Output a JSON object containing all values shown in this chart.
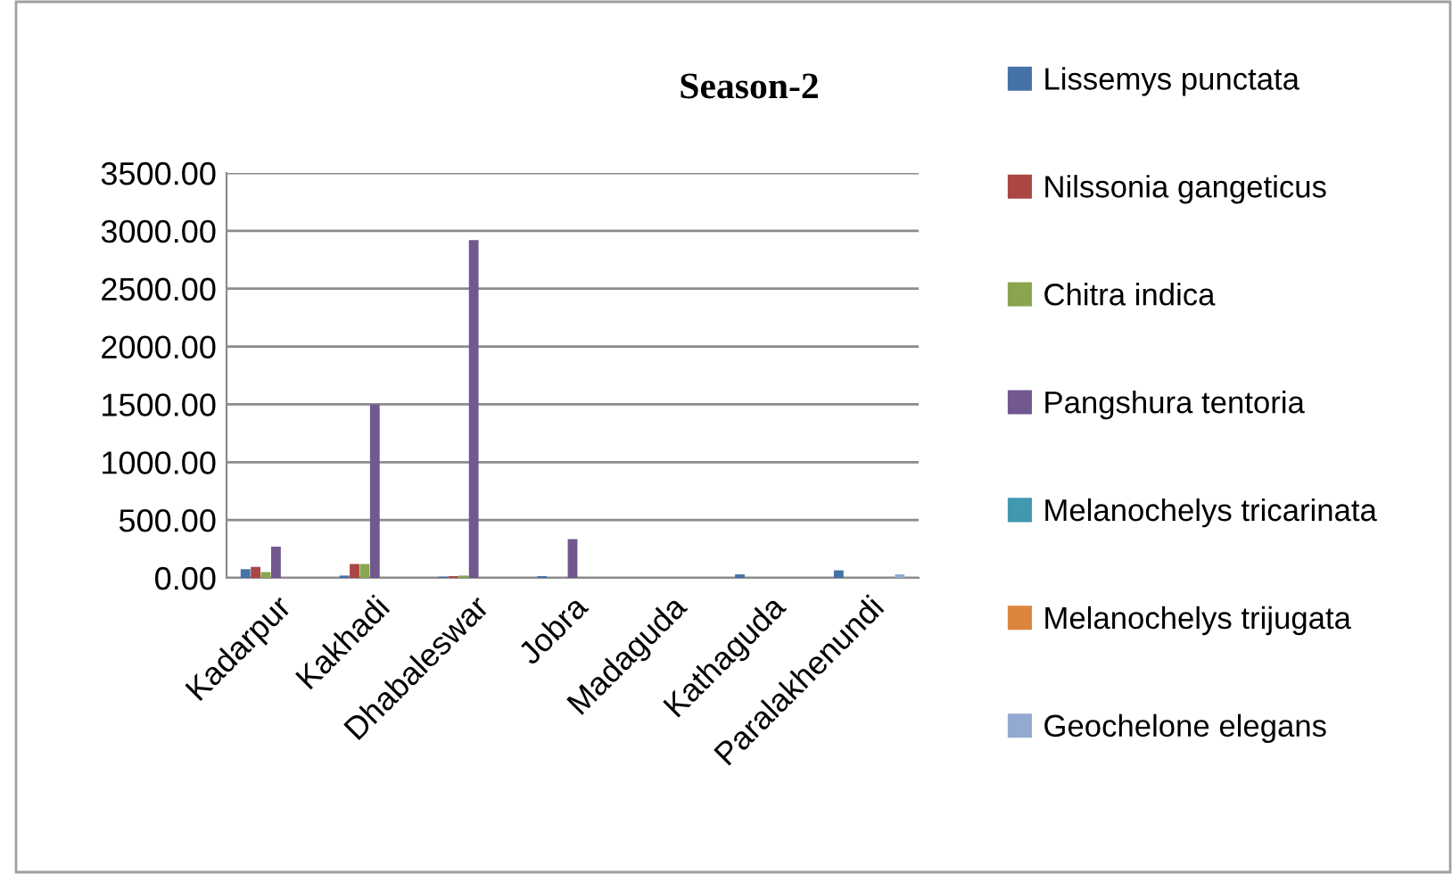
{
  "chart_data": {
    "type": "bar",
    "title": "Season-2",
    "categories": [
      "Kadarpur",
      "Kakhadi",
      "Dhabaleswar",
      "Jobra",
      "Madaguda",
      "Kathaguda",
      "Paralakhenundi"
    ],
    "series": [
      {
        "name": "Lissemys punctata",
        "color": "#4572a7",
        "values": [
          75,
          20,
          10,
          15,
          0,
          30,
          65
        ]
      },
      {
        "name": "Nilssonia gangeticus",
        "color": "#aa4643",
        "values": [
          95,
          120,
          15,
          0,
          0,
          0,
          0
        ]
      },
      {
        "name": "Chitra indica",
        "color": "#89a54e",
        "values": [
          50,
          120,
          20,
          0,
          0,
          0,
          0
        ]
      },
      {
        "name": "Pangshura tentoria",
        "color": "#71588f",
        "values": [
          270,
          1500,
          2920,
          335,
          0,
          0,
          0
        ]
      },
      {
        "name": "Melanochelys tricarinata",
        "color": "#4198af",
        "values": [
          0,
          0,
          0,
          0,
          0,
          0,
          0
        ]
      },
      {
        "name": "Melanochelys trijugata",
        "color": "#db843d",
        "values": [
          0,
          0,
          0,
          0,
          0,
          0,
          0
        ]
      },
      {
        "name": "Geochelone elegans",
        "color": "#93a9cf",
        "values": [
          0,
          0,
          0,
          0,
          0,
          0,
          30
        ]
      }
    ],
    "ylim": [
      0,
      3500
    ],
    "yticks": [
      {
        "value": 0,
        "label": "0.00"
      },
      {
        "value": 500,
        "label": "500.00"
      },
      {
        "value": 1000,
        "label": "1000.00"
      },
      {
        "value": 1500,
        "label": "1500.00"
      },
      {
        "value": 2000,
        "label": "2000.00"
      },
      {
        "value": 2500,
        "label": "2500.00"
      },
      {
        "value": 3000,
        "label": "3000.00"
      },
      {
        "value": 3500,
        "label": "3500.00"
      }
    ],
    "grid": "y",
    "legend": "right"
  }
}
